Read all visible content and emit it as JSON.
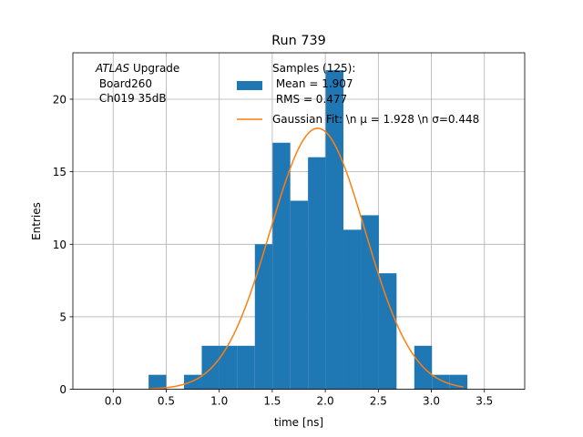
{
  "chart_data": {
    "type": "bar",
    "title": "Run 739",
    "xlabel": "time [ns]",
    "ylabel": "Entries",
    "xlim": [
      -0.38,
      3.88
    ],
    "ylim": [
      0,
      23.2
    ],
    "grid": true,
    "xticks": [
      0.0,
      0.5,
      1.0,
      1.5,
      2.0,
      2.5,
      3.0,
      3.5
    ],
    "xtick_labels": [
      "0.0",
      "0.5",
      "1.0",
      "1.5",
      "2.0",
      "2.5",
      "3.0",
      "3.5"
    ],
    "yticks": [
      0,
      5,
      10,
      15,
      20
    ],
    "ytick_labels": [
      "0",
      "5",
      "10",
      "15",
      "20"
    ],
    "bin_width": 0.167,
    "bins": [
      {
        "x0": 0.334,
        "count": 1
      },
      {
        "x0": 0.501,
        "count": 0
      },
      {
        "x0": 0.668,
        "count": 1
      },
      {
        "x0": 0.835,
        "count": 3
      },
      {
        "x0": 1.002,
        "count": 3
      },
      {
        "x0": 1.169,
        "count": 3
      },
      {
        "x0": 1.336,
        "count": 10
      },
      {
        "x0": 1.503,
        "count": 17
      },
      {
        "x0": 1.67,
        "count": 13
      },
      {
        "x0": 1.837,
        "count": 16
      },
      {
        "x0": 2.004,
        "count": 22
      },
      {
        "x0": 2.171,
        "count": 11
      },
      {
        "x0": 2.338,
        "count": 12
      },
      {
        "x0": 2.505,
        "count": 8
      },
      {
        "x0": 2.672,
        "count": 0
      },
      {
        "x0": 2.839,
        "count": 3
      },
      {
        "x0": 3.006,
        "count": 1
      },
      {
        "x0": 3.173,
        "count": 1
      }
    ],
    "gaussian_fit": {
      "mu": 1.928,
      "sigma": 0.448,
      "amplitude": 18.0,
      "x_range": [
        0.34,
        3.3
      ]
    },
    "series": [
      {
        "name": "Samples (125):\n Mean = 1.907\n RMS = 0.477",
        "color": "#1f77b4"
      },
      {
        "name": "Gaussian Fit: \\n $\\mu$ = 1.928 \\n $\\sigma$=0.448",
        "color": "#ff7f0e"
      }
    ],
    "legend": {
      "placement": "top-right",
      "samples_lines": [
        "Samples (125):",
        " Mean = 1.907",
        " RMS = 0.477"
      ],
      "fit_label": "Gaussian Fit: \\n μ = 1.928 \\n σ=0.448"
    },
    "annotation": {
      "italic_part": "ATLAS",
      "rest_part": " Upgrade",
      "line2": " Board260",
      "line3": " Ch019 35dB"
    }
  }
}
